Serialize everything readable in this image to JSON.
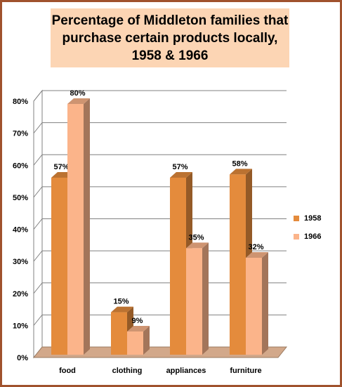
{
  "chart_data": {
    "type": "bar",
    "title": "Percentage of Middleton families that\npurchase certain products locally,\n1958 & 1966",
    "categories": [
      "food",
      "clothing",
      "appliances",
      "furniture"
    ],
    "series": [
      {
        "name": "1958",
        "values": [
          57,
          15,
          57,
          58
        ],
        "color": "#e48b3c"
      },
      {
        "name": "1966",
        "values": [
          80,
          9,
          35,
          32
        ],
        "color": "#fbb48a"
      }
    ],
    "data_labels": {
      "1958": [
        "57%",
        "15%",
        "57%",
        "58%"
      ],
      "1966": [
        "80%",
        "9%",
        "35%",
        "32%"
      ]
    },
    "yticks": [
      "0%",
      "10%",
      "20%",
      "30%",
      "40%",
      "50%",
      "60%",
      "70%",
      "80%"
    ],
    "ylim": [
      0,
      80
    ],
    "grid": true,
    "legend_position": "right",
    "floor_color": "#d2a88a",
    "border_color": "#a0522d",
    "title_background": "#fcd5b4"
  }
}
